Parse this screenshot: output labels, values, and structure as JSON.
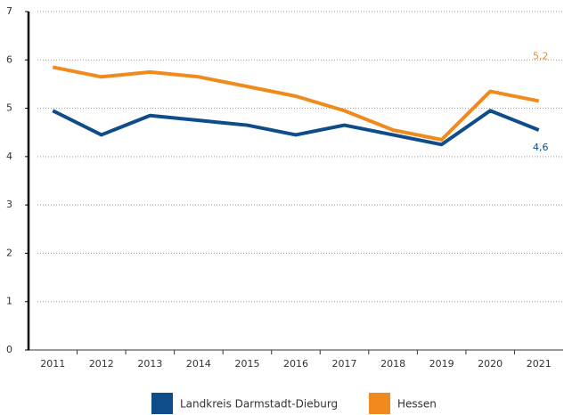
{
  "chart_data": {
    "type": "line",
    "categories": [
      "2011",
      "2012",
      "2013",
      "2014",
      "2015",
      "2016",
      "2017",
      "2018",
      "2019",
      "2020",
      "2021"
    ],
    "series": [
      {
        "name": "Landkreis Darmstadt-Dieburg",
        "color": "#0f4c8a",
        "values": [
          4.95,
          4.45,
          4.85,
          4.75,
          4.65,
          4.45,
          4.65,
          4.45,
          4.25,
          4.95,
          4.55
        ],
        "value_labels": [
          null,
          null,
          null,
          null,
          null,
          null,
          null,
          null,
          null,
          null,
          "4,6"
        ]
      },
      {
        "name": "Hessen",
        "color": "#f08a1c",
        "values": [
          5.85,
          5.65,
          5.75,
          5.65,
          5.45,
          5.25,
          4.95,
          4.55,
          4.35,
          5.35,
          5.15
        ],
        "value_labels": [
          null,
          null,
          null,
          null,
          null,
          null,
          null,
          null,
          null,
          null,
          "5,2"
        ]
      }
    ],
    "ylim": [
      0,
      7
    ],
    "yticks": [
      0,
      1,
      2,
      3,
      4,
      5,
      6,
      7
    ],
    "grid": true
  }
}
